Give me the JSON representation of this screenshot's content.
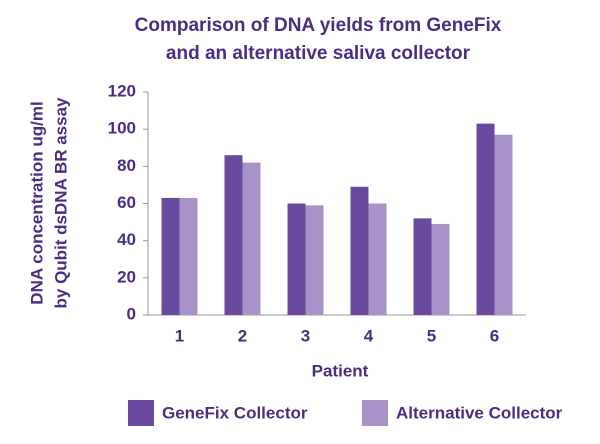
{
  "chart_data": {
    "type": "bar",
    "title": [
      "Comparison of DNA yields from GeneFix",
      "and an alternative saliva collector"
    ],
    "y_label": [
      "DNA concentration ug/ml",
      "by Qubit dsDNA BR assay"
    ],
    "x_label": "Patient",
    "categories": [
      "1",
      "2",
      "3",
      "4",
      "5",
      "6"
    ],
    "series": [
      {
        "name": "GeneFix Collector",
        "color": "#6a4a9e",
        "values": [
          63,
          86,
          60,
          69,
          52,
          103
        ]
      },
      {
        "name": "Alternative Collector",
        "color": "#a893c9",
        "values": [
          63,
          82,
          59,
          60,
          49,
          97
        ]
      }
    ],
    "ylim": [
      0,
      120
    ],
    "yticks": [
      0,
      20,
      40,
      60,
      80,
      100,
      120
    ],
    "grid": false,
    "legend": "bottom"
  }
}
